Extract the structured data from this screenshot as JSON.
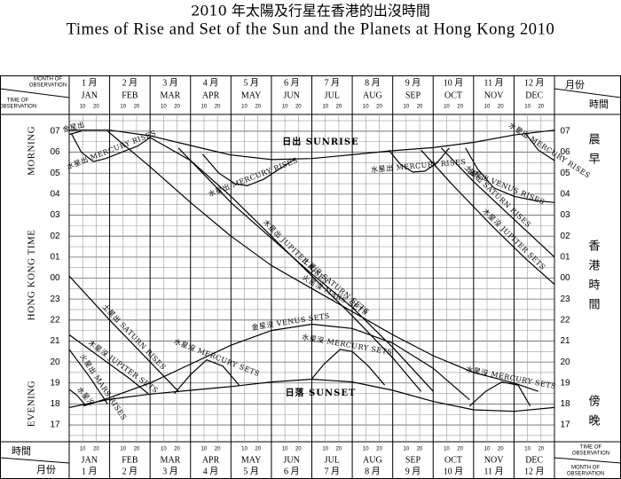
{
  "chart_data": {
    "type": "line",
    "title": "2010 年太陽及行星在香港的出沒時間",
    "subtitle": "Times of Rise and Set of the Sun and the Planets at Hong Kong 2010",
    "corner": {
      "month_of_observation": [
        "MONTH OF",
        "OBSERVATION"
      ],
      "time_of_observation": [
        "TIME OF",
        "OBSERVATION"
      ],
      "month_zh": "月份",
      "time_zh": "時間"
    },
    "left_labels": {
      "morning": "MORNING",
      "time": "HONG KONG TIME",
      "evening": "EVENING"
    },
    "right_labels": {
      "morning": "晨早",
      "time": "香港時間",
      "evening": "傍晚"
    },
    "categories": [
      "JAN",
      "FEB",
      "MAR",
      "APR",
      "MAY",
      "JUN",
      "JUL",
      "AUG",
      "SEP",
      "OCT",
      "NOV",
      "DEC"
    ],
    "categories_zh": [
      "1 月",
      "2 月",
      "3 月",
      "4 月",
      "5 月",
      "6 月",
      "7 月",
      "8 月",
      "9 月",
      "10 月",
      "11 月",
      "12 月"
    ],
    "day_ticks": [
      10,
      20
    ],
    "xlim": [
      0,
      12
    ],
    "xticks": [
      0,
      1,
      2,
      3,
      4,
      5,
      6,
      7,
      8,
      9,
      10,
      11,
      12
    ],
    "ylim": [
      16.2,
      31.8
    ],
    "yticks": [
      17,
      18,
      19,
      20,
      21,
      22,
      23,
      {
        "value": 24,
        "label": "00"
      },
      {
        "value": 25,
        "label": "01"
      },
      {
        "value": 26,
        "label": "02"
      },
      {
        "value": 27,
        "label": "03"
      },
      {
        "value": 28,
        "label": "04"
      },
      {
        "value": 29,
        "label": "05"
      },
      {
        "value": 30,
        "label": "06"
      },
      {
        "value": 31,
        "label": "07"
      }
    ],
    "minor_grid_y": [
      16.5,
      17.5,
      18.5,
      19.5,
      20.5,
      21.5,
      22.5,
      23.5,
      24.5,
      25.5,
      26.5,
      27.5,
      28.5,
      29.5,
      30.5,
      31.5
    ],
    "grid": true,
    "series": [
      {
        "name": "日出 SUNRISE",
        "color": "#000000",
        "label_horizontal": true,
        "label_side": "above",
        "x": [
          0,
          1,
          2,
          3,
          4,
          5,
          6,
          7,
          8,
          9,
          10,
          11,
          12
        ],
        "values": [
          31.05,
          31.05,
          30.78,
          30.32,
          29.87,
          29.65,
          29.7,
          29.88,
          30.07,
          30.22,
          30.47,
          30.82,
          31.05
        ]
      },
      {
        "name": "日落 SUNSET",
        "color": "#000000",
        "label_horizontal": true,
        "label_side": "below",
        "x": [
          0,
          1,
          2,
          3,
          4,
          5,
          6,
          7,
          8,
          9,
          10,
          11,
          12
        ],
        "values": [
          17.83,
          18.22,
          18.47,
          18.65,
          18.83,
          19.05,
          19.18,
          19.05,
          18.65,
          18.12,
          17.72,
          17.65,
          17.83
        ]
      },
      {
        "name": "水星出 MERCURY RISES",
        "color": "#000000",
        "x": [
          0.05,
          0.3,
          0.6,
          0.9,
          1.3,
          1.7,
          2.0
        ],
        "values": [
          30.9,
          30.0,
          29.55,
          29.7,
          30.0,
          30.3,
          30.7
        ]
      },
      {
        "name": "水星出 MERCURY RISES",
        "color": "#000000",
        "x": [
          3.3,
          3.7,
          4.1,
          4.4,
          4.8,
          5.2,
          5.6
        ],
        "values": [
          29.9,
          29.0,
          28.5,
          28.4,
          28.7,
          29.2,
          29.7
        ]
      },
      {
        "name": "水星出 MERCURY RISES",
        "color": "#000000",
        "x": [
          7.9,
          8.2,
          8.5,
          8.8,
          9.1,
          9.4
        ],
        "values": [
          30.1,
          29.4,
          29.05,
          29.1,
          29.5,
          30.2
        ]
      },
      {
        "name": "水星出 MERCURY RISES",
        "color": "#000000",
        "x": [
          11.3,
          11.6,
          12
        ],
        "values": [
          30.85,
          30.1,
          29.6
        ]
      },
      {
        "name": "金星出",
        "color": "#000000",
        "x": [
          0,
          0.3
        ],
        "values": [
          30.85,
          31.0
        ]
      },
      {
        "name": "金星出 VENUS RISES",
        "color": "#000000",
        "x": [
          9.8,
          10.1,
          10.5,
          11,
          11.5,
          12
        ],
        "values": [
          30.2,
          29.2,
          28.3,
          27.9,
          27.7,
          27.6
        ]
      },
      {
        "name": "土星出 SATURN RISES",
        "color": "#000000",
        "x": [
          9.2,
          10,
          11,
          12
        ],
        "values": [
          30.2,
          28.6,
          26.8,
          25.0
        ]
      },
      {
        "name": "木星沒 JUPITER SETS",
        "color": "#000000",
        "x": [
          8.7,
          9.5,
          10.5,
          11.3,
          12
        ],
        "values": [
          30.1,
          28.4,
          26.4,
          24.9,
          23.7
        ]
      },
      {
        "name": "木星出 JUPITER RISES",
        "color": "#000000",
        "x": [
          2.0,
          3,
          4,
          5,
          6,
          7,
          8,
          8.7
        ],
        "values": [
          30.7,
          29.6,
          27.9,
          26.0,
          24.1,
          22.2,
          20.2,
          18.6
        ]
      },
      {
        "name": "土星沒 SATURN SETS",
        "color": "#000000",
        "x": [
          2.7,
          4,
          5,
          6,
          7,
          8,
          9
        ],
        "values": [
          30.2,
          27.6,
          25.9,
          24.2,
          22.6,
          20.7,
          18.6
        ]
      },
      {
        "name": "火星沒 MARS SETS",
        "color": "#000000",
        "x": [
          0.95,
          2,
          3,
          4,
          5,
          6,
          7,
          8,
          9,
          10,
          11,
          11.6
        ],
        "values": [
          31.0,
          29.3,
          27.6,
          26.0,
          24.6,
          23.5,
          22.4,
          21.3,
          20.3,
          19.5,
          19.0,
          18.6
        ]
      },
      {
        "name": "土星出 SATURN RISES",
        "color": "#000000",
        "x": [
          0,
          1,
          2,
          2.7
        ],
        "values": [
          24.1,
          22.0,
          20.0,
          18.6
        ]
      },
      {
        "name": "木星沒 JUPITER SETS",
        "color": "#000000",
        "x": [
          0,
          0.5,
          1,
          1.5,
          1.95
        ],
        "values": [
          21.3,
          20.6,
          19.9,
          19.2,
          18.5
        ]
      },
      {
        "name": "火星出 MARS RISES",
        "color": "#000000",
        "x": [
          0,
          0.5,
          0.95
        ],
        "values": [
          20.6,
          19.3,
          18.0
        ]
      },
      {
        "name": "水星沒",
        "color": "#000000",
        "x": [
          0,
          0.2,
          0.4
        ],
        "values": [
          18.7,
          18.4,
          17.95
        ]
      },
      {
        "name": "金星沒 VENUS SETS",
        "color": "#000000",
        "x": [
          0.35,
          1,
          2,
          3,
          4,
          5,
          6,
          7,
          8,
          9,
          9.9
        ],
        "values": [
          17.9,
          18.3,
          19.0,
          19.9,
          20.8,
          21.5,
          21.8,
          21.6,
          20.9,
          19.7,
          18.2
        ]
      },
      {
        "name": "水星沒 MERCURY SETS",
        "color": "#000000",
        "x": [
          2.6,
          3,
          3.4,
          3.8,
          4.2
        ],
        "values": [
          18.5,
          19.4,
          20.1,
          19.8,
          18.9
        ]
      },
      {
        "name": "水星沒 MERCURY SETS",
        "color": "#000000",
        "x": [
          6.0,
          6.3,
          6.7,
          7.0,
          7.4,
          7.8
        ],
        "values": [
          19.2,
          19.9,
          20.6,
          20.5,
          19.8,
          18.9
        ]
      },
      {
        "name": "水星沒 MERCURY SETS",
        "color": "#000000",
        "x": [
          9.9,
          10.3,
          10.7,
          11.1,
          11.4
        ],
        "values": [
          17.9,
          18.6,
          19.05,
          18.9,
          17.9
        ]
      }
    ]
  }
}
